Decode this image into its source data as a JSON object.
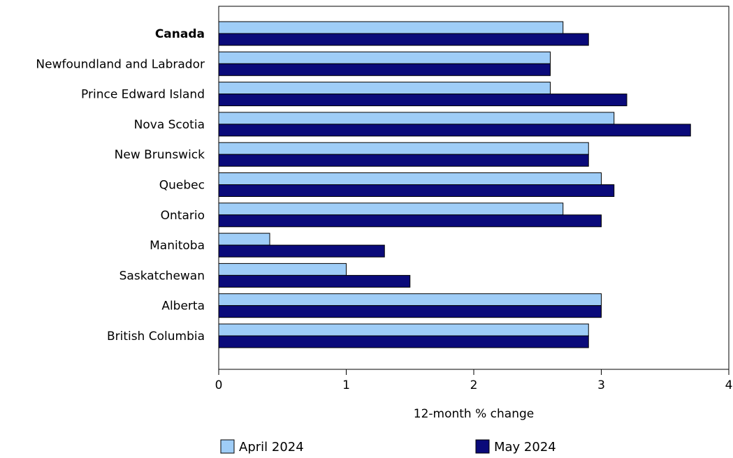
{
  "chart_data": {
    "type": "bar",
    "orientation": "horizontal",
    "categories": [
      "Canada",
      "Newfoundland and Labrador",
      "Prince Edward Island",
      "Nova Scotia",
      "New Brunswick",
      "Quebec",
      "Ontario",
      "Manitoba",
      "Saskatchewan",
      "Alberta",
      "British Columbia"
    ],
    "bold_categories": [
      "Canada"
    ],
    "series": [
      {
        "name": "April 2024",
        "color": "#9fcdf7",
        "values": [
          2.7,
          2.6,
          2.6,
          3.1,
          2.9,
          3.0,
          2.7,
          0.4,
          1.0,
          3.0,
          2.9
        ]
      },
      {
        "name": "May 2024",
        "color": "#0a0a7a",
        "values": [
          2.9,
          2.6,
          3.2,
          3.7,
          2.9,
          3.1,
          3.0,
          1.3,
          1.5,
          3.0,
          2.9
        ]
      }
    ],
    "xlabel": "12-month % change",
    "ylabel": "",
    "xlim": [
      0,
      4
    ],
    "xticks": [
      "0",
      "1",
      "2",
      "3",
      "4"
    ],
    "grid": false,
    "legend_position": "bottom"
  }
}
